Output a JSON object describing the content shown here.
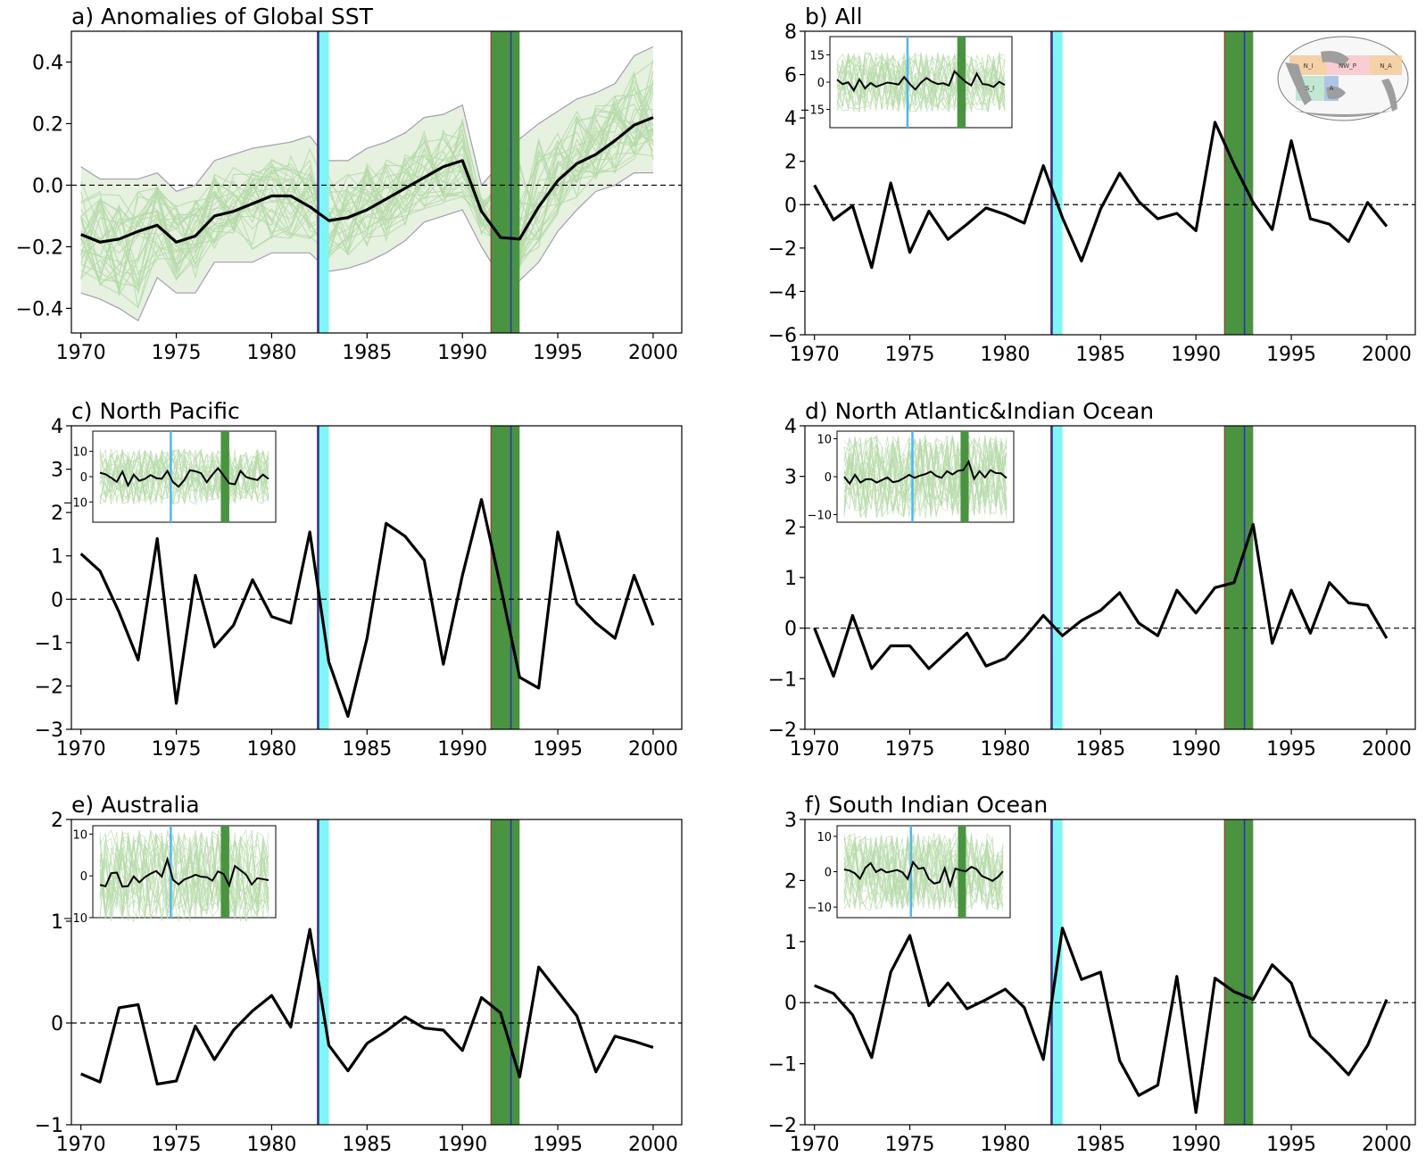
{
  "chart_data": [
    {
      "type": "line",
      "title": "a) Anomalies of Global SST",
      "x": [
        1970,
        1971,
        1972,
        1973,
        1974,
        1975,
        1976,
        1977,
        1978,
        1979,
        1980,
        1981,
        1982,
        1983,
        1984,
        1985,
        1986,
        1987,
        1988,
        1989,
        1990,
        1991,
        1992,
        1993,
        1994,
        1995,
        1996,
        1997,
        1998,
        1999,
        2000
      ],
      "ylim": [
        -0.48,
        0.5
      ],
      "yticks": [
        -0.4,
        -0.2,
        0.0,
        0.2,
        0.4
      ],
      "ytick_labels": [
        "−0.4",
        "−0.2",
        "0.0",
        "0.2",
        "0.4"
      ],
      "xlim": [
        1969.5,
        2001.5
      ],
      "xticks": [
        1970,
        1975,
        1980,
        1985,
        1990,
        1995,
        2000
      ],
      "series": [
        {
          "values": [
            -0.16,
            -0.185,
            -0.175,
            -0.15,
            -0.13,
            -0.185,
            -0.165,
            -0.1,
            -0.085,
            -0.06,
            -0.035,
            -0.035,
            -0.07,
            -0.115,
            -0.105,
            -0.08,
            -0.045,
            -0.01,
            0.025,
            0.06,
            0.08,
            -0.085,
            -0.17,
            -0.175,
            -0.07,
            0.015,
            0.07,
            0.1,
            0.145,
            0.195,
            0.22
          ]
        }
      ],
      "ensemble_upper": [
        0.06,
        0.02,
        0.02,
        0.02,
        0.04,
        -0.02,
        0.0,
        0.08,
        0.1,
        0.12,
        0.13,
        0.14,
        0.16,
        0.08,
        0.08,
        0.12,
        0.14,
        0.17,
        0.22,
        0.23,
        0.26,
        0.0,
        0.07,
        0.15,
        0.2,
        0.24,
        0.28,
        0.3,
        0.33,
        0.42,
        0.45
      ],
      "ensemble_lower": [
        -0.35,
        -0.37,
        -0.4,
        -0.44,
        -0.3,
        -0.35,
        -0.35,
        -0.25,
        -0.25,
        -0.25,
        -0.22,
        -0.22,
        -0.22,
        -0.28,
        -0.27,
        -0.25,
        -0.22,
        -0.18,
        -0.12,
        -0.1,
        -0.08,
        -0.2,
        -0.3,
        -0.31,
        -0.25,
        -0.15,
        -0.08,
        -0.02,
        0.0,
        0.04,
        0.04
      ],
      "bands": [
        {
          "start": 1982.4,
          "end": 1982.5,
          "color": "#1f3a93"
        },
        {
          "start": 1982.5,
          "end": 1983.0,
          "color": "#7ff5f5"
        },
        {
          "start": 1991.5,
          "end": 1992.5,
          "color": "#4a9341"
        },
        {
          "start": 1992.5,
          "end": 1992.6,
          "color": "#1f3a93"
        },
        {
          "start": 1992.6,
          "end": 1993.0,
          "color": "#4a9341"
        }
      ],
      "zero_line": true
    },
    {
      "type": "line",
      "title": "b) All",
      "x": [
        1970,
        1971,
        1972,
        1973,
        1974,
        1975,
        1976,
        1977,
        1978,
        1979,
        1980,
        1981,
        1982,
        1983,
        1984,
        1985,
        1986,
        1987,
        1988,
        1989,
        1990,
        1991,
        1992,
        1993,
        1994,
        1995,
        1996,
        1997,
        1998,
        1999,
        2000
      ],
      "ylim": [
        -6,
        8
      ],
      "yticks": [
        -6,
        -4,
        -2,
        0,
        2,
        4,
        6,
        8
      ],
      "ytick_labels": [
        "−6",
        "−4",
        "−2",
        "0",
        "2",
        "4",
        "6",
        "8"
      ],
      "xlim": [
        1969.5,
        2001.5
      ],
      "xticks": [
        1970,
        1975,
        1980,
        1985,
        1990,
        1995,
        2000
      ],
      "series": [
        {
          "values": [
            0.9,
            -0.7,
            -0.05,
            -2.9,
            1.0,
            -2.2,
            -0.3,
            -1.6,
            -0.9,
            -0.15,
            -0.45,
            -0.85,
            1.8,
            -0.6,
            -2.6,
            -0.2,
            1.45,
            0.15,
            -0.65,
            -0.4,
            -1.2,
            3.8,
            1.85,
            0.1,
            -1.15,
            2.95,
            -0.65,
            -0.9,
            -1.7,
            0.1,
            -1.0
          ]
        }
      ],
      "bands": [
        {
          "start": 1982.4,
          "end": 1982.5,
          "color": "#1f3a93"
        },
        {
          "start": 1982.5,
          "end": 1983.0,
          "color": "#7ff5f5"
        },
        {
          "start": 1991.5,
          "end": 1992.5,
          "color": "#4a9341"
        },
        {
          "start": 1992.5,
          "end": 1992.6,
          "color": "#1f3a93"
        },
        {
          "start": 1992.6,
          "end": 1993.0,
          "color": "#4a9341"
        }
      ],
      "zero_line": true,
      "inset": {
        "yticks": [
          -15,
          0,
          15
        ],
        "ytick_labels": [
          "−15",
          "0",
          "15"
        ],
        "ylim": [
          -25,
          25
        ]
      },
      "map_labels": [
        "N_I",
        "NW_P",
        "N_A",
        "S_I",
        "A"
      ]
    },
    {
      "type": "line",
      "title": "c) North Pacific",
      "x": [
        1970,
        1971,
        1972,
        1973,
        1974,
        1975,
        1976,
        1977,
        1978,
        1979,
        1980,
        1981,
        1982,
        1983,
        1984,
        1985,
        1986,
        1987,
        1988,
        1989,
        1990,
        1991,
        1992,
        1993,
        1994,
        1995,
        1996,
        1997,
        1998,
        1999,
        2000
      ],
      "ylim": [
        -3,
        4
      ],
      "yticks": [
        -3,
        -2,
        -1,
        0,
        1,
        2,
        3,
        4
      ],
      "ytick_labels": [
        "−3",
        "−2",
        "−1",
        "0",
        "1",
        "2",
        "3",
        "4"
      ],
      "xlim": [
        1969.5,
        2001.5
      ],
      "xticks": [
        1970,
        1975,
        1980,
        1985,
        1990,
        1995,
        2000
      ],
      "series": [
        {
          "values": [
            1.05,
            0.65,
            -0.3,
            -1.4,
            1.4,
            -2.4,
            0.55,
            -1.1,
            -0.6,
            0.45,
            -0.4,
            -0.55,
            1.55,
            -1.45,
            -2.7,
            -0.9,
            1.75,
            1.45,
            0.9,
            -1.5,
            0.55,
            2.3,
            0.3,
            -1.8,
            -2.05,
            1.55,
            -0.1,
            -0.55,
            -0.9,
            0.55,
            -0.6
          ]
        }
      ],
      "bands": [
        {
          "start": 1982.4,
          "end": 1982.5,
          "color": "#1f3a93"
        },
        {
          "start": 1982.5,
          "end": 1983.0,
          "color": "#7ff5f5"
        },
        {
          "start": 1991.5,
          "end": 1992.5,
          "color": "#4a9341"
        },
        {
          "start": 1992.5,
          "end": 1992.6,
          "color": "#1f3a93"
        },
        {
          "start": 1992.6,
          "end": 1993.0,
          "color": "#4a9341"
        }
      ],
      "zero_line": true,
      "inset": {
        "yticks": [
          -10,
          0,
          10
        ],
        "ytick_labels": [
          "−10",
          "0",
          "10"
        ],
        "ylim": [
          -18,
          18
        ]
      }
    },
    {
      "type": "line",
      "title": "d) North Atlantic&Indian Ocean",
      "x": [
        1970,
        1971,
        1972,
        1973,
        1974,
        1975,
        1976,
        1977,
        1978,
        1979,
        1980,
        1981,
        1982,
        1983,
        1984,
        1985,
        1986,
        1987,
        1988,
        1989,
        1990,
        1991,
        1992,
        1993,
        1994,
        1995,
        1996,
        1997,
        1998,
        1999,
        2000
      ],
      "ylim": [
        -2,
        4
      ],
      "yticks": [
        -2,
        -1,
        0,
        1,
        2,
        3,
        4
      ],
      "ytick_labels": [
        "−2",
        "−1",
        "0",
        "1",
        "2",
        "3",
        "4"
      ],
      "xlim": [
        1969.5,
        2001.5
      ],
      "xticks": [
        1970,
        1975,
        1980,
        1985,
        1990,
        1995,
        2000
      ],
      "series": [
        {
          "values": [
            0.0,
            -0.95,
            0.25,
            -0.8,
            -0.35,
            -0.35,
            -0.8,
            -0.45,
            -0.1,
            -0.75,
            -0.6,
            -0.2,
            0.25,
            -0.15,
            0.15,
            0.35,
            0.7,
            0.1,
            -0.15,
            0.75,
            0.3,
            0.8,
            0.9,
            2.05,
            -0.3,
            0.75,
            -0.1,
            0.9,
            0.5,
            0.45,
            -0.2
          ]
        }
      ],
      "bands": [
        {
          "start": 1982.4,
          "end": 1982.5,
          "color": "#1f3a93"
        },
        {
          "start": 1982.5,
          "end": 1983.0,
          "color": "#7ff5f5"
        },
        {
          "start": 1991.5,
          "end": 1992.5,
          "color": "#4a9341"
        },
        {
          "start": 1992.5,
          "end": 1992.6,
          "color": "#1f3a93"
        },
        {
          "start": 1992.6,
          "end": 1993.0,
          "color": "#4a9341"
        }
      ],
      "zero_line": true,
      "inset": {
        "yticks": [
          -10,
          0,
          10
        ],
        "ytick_labels": [
          "−10",
          "0",
          "10"
        ],
        "ylim": [
          -12,
          12
        ]
      }
    },
    {
      "type": "line",
      "title": "e) Australia",
      "x": [
        1970,
        1971,
        1972,
        1973,
        1974,
        1975,
        1976,
        1977,
        1978,
        1979,
        1980,
        1981,
        1982,
        1983,
        1984,
        1985,
        1986,
        1987,
        1988,
        1989,
        1990,
        1991,
        1992,
        1993,
        1994,
        1995,
        1996,
        1997,
        1998,
        1999,
        2000
      ],
      "ylim": [
        -1,
        2
      ],
      "yticks": [
        -1,
        0,
        1,
        2
      ],
      "ytick_labels": [
        "−1",
        "0",
        "1",
        "2"
      ],
      "xlim": [
        1969.5,
        2001.5
      ],
      "xticks": [
        1970,
        1975,
        1980,
        1985,
        1990,
        1995,
        2000
      ],
      "series": [
        {
          "values": [
            -0.5,
            -0.58,
            0.15,
            0.18,
            -0.6,
            -0.57,
            -0.03,
            -0.36,
            -0.07,
            0.12,
            0.27,
            -0.04,
            0.92,
            -0.22,
            -0.47,
            -0.2,
            -0.08,
            0.06,
            -0.05,
            -0.07,
            -0.27,
            0.25,
            0.1,
            -0.53,
            0.55,
            0.31,
            0.07,
            -0.48,
            -0.13,
            -0.18,
            -0.24
          ]
        }
      ],
      "bands": [
        {
          "start": 1982.4,
          "end": 1982.5,
          "color": "#1f3a93"
        },
        {
          "start": 1982.5,
          "end": 1983.0,
          "color": "#7ff5f5"
        },
        {
          "start": 1991.5,
          "end": 1992.5,
          "color": "#4a9341"
        },
        {
          "start": 1992.5,
          "end": 1992.6,
          "color": "#1f3a93"
        },
        {
          "start": 1992.6,
          "end": 1993.0,
          "color": "#4a9341"
        }
      ],
      "zero_line": true,
      "inset": {
        "yticks": [
          -10,
          0,
          10
        ],
        "ytick_labels": [
          "−10",
          "0",
          "10"
        ],
        "ylim": [
          -10,
          12
        ]
      }
    },
    {
      "type": "line",
      "title": "f) South Indian Ocean",
      "x": [
        1970,
        1971,
        1972,
        1973,
        1974,
        1975,
        1976,
        1977,
        1978,
        1979,
        1980,
        1981,
        1982,
        1983,
        1984,
        1985,
        1986,
        1987,
        1988,
        1989,
        1990,
        1991,
        1992,
        1993,
        1994,
        1995,
        1996,
        1997,
        1998,
        1999,
        2000
      ],
      "ylim": [
        -2,
        3
      ],
      "yticks": [
        -2,
        -1,
        0,
        1,
        2,
        3
      ],
      "ytick_labels": [
        "−2",
        "−1",
        "0",
        "1",
        "2",
        "3"
      ],
      "xlim": [
        1969.5,
        2001.5
      ],
      "xticks": [
        1970,
        1975,
        1980,
        1985,
        1990,
        1995,
        2000
      ],
      "series": [
        {
          "values": [
            0.28,
            0.15,
            -0.2,
            -0.9,
            0.5,
            1.1,
            -0.05,
            0.32,
            -0.1,
            0.05,
            0.22,
            -0.08,
            -0.93,
            1.22,
            0.38,
            0.5,
            -0.95,
            -1.52,
            -1.35,
            0.43,
            -1.8,
            0.4,
            0.18,
            0.05,
            0.62,
            0.32,
            -0.55,
            -0.85,
            -1.18,
            -0.7,
            0.05
          ]
        }
      ],
      "bands": [
        {
          "start": 1982.4,
          "end": 1982.5,
          "color": "#1f3a93"
        },
        {
          "start": 1982.5,
          "end": 1983.0,
          "color": "#7ff5f5"
        },
        {
          "start": 1991.5,
          "end": 1992.5,
          "color": "#4a9341"
        },
        {
          "start": 1992.5,
          "end": 1992.6,
          "color": "#1f3a93"
        },
        {
          "start": 1992.6,
          "end": 1993.0,
          "color": "#4a9341"
        }
      ],
      "zero_line": true,
      "inset": {
        "yticks": [
          -10,
          0,
          10
        ],
        "ytick_labels": [
          "−10",
          "0",
          "10"
        ],
        "ylim": [
          -13,
          13
        ]
      }
    }
  ],
  "colors": {
    "main_line": "#000000",
    "ensemble": "#b5d9a8",
    "ensemble_fill": "#e6f1e0",
    "envelope": "#a59bb0"
  }
}
